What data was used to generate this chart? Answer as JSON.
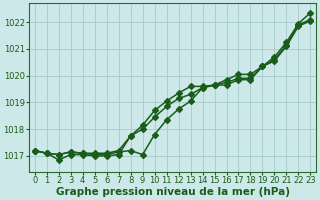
{
  "xlabel": "Graphe pression niveau de la mer (hPa)",
  "bg_color": "#cde8e8",
  "grid_color": "#aacfcf",
  "line_color": "#1a5c1a",
  "xlim": [
    -0.5,
    23.5
  ],
  "ylim": [
    1016.4,
    1022.7
  ],
  "yticks": [
    1017,
    1018,
    1019,
    1020,
    1021,
    1022
  ],
  "xticks": [
    0,
    1,
    2,
    3,
    4,
    5,
    6,
    7,
    8,
    9,
    10,
    11,
    12,
    13,
    14,
    15,
    16,
    17,
    18,
    19,
    20,
    21,
    22,
    23
  ],
  "series1": [
    1017.2,
    1017.1,
    1017.05,
    1017.15,
    1017.1,
    1017.05,
    1017.05,
    1017.15,
    1017.2,
    1017.05,
    1017.8,
    1018.35,
    1018.75,
    1019.05,
    1019.55,
    1019.65,
    1019.65,
    1019.85,
    1019.85,
    1020.35,
    1020.55,
    1021.1,
    1021.85,
    1022.05
  ],
  "series2": [
    1017.2,
    1017.1,
    1016.85,
    1017.05,
    1017.05,
    1017.0,
    1017.0,
    1017.05,
    1017.75,
    1018.0,
    1018.45,
    1018.85,
    1019.15,
    1019.3,
    1019.55,
    1019.65,
    1019.75,
    1019.9,
    1019.9,
    1020.35,
    1020.6,
    1021.15,
    1021.9,
    1022.1
  ],
  "series3": [
    1017.2,
    1017.1,
    1017.05,
    1017.15,
    1017.1,
    1017.1,
    1017.1,
    1017.2,
    1017.75,
    1018.15,
    1018.7,
    1019.05,
    1019.35,
    1019.6,
    1019.6,
    1019.65,
    1019.85,
    1020.05,
    1020.05,
    1020.35,
    1020.7,
    1021.25,
    1021.95,
    1022.35
  ],
  "markersize": 3.0,
  "linewidth": 1.1,
  "tick_fontsize": 6.0,
  "label_fontsize": 7.5
}
